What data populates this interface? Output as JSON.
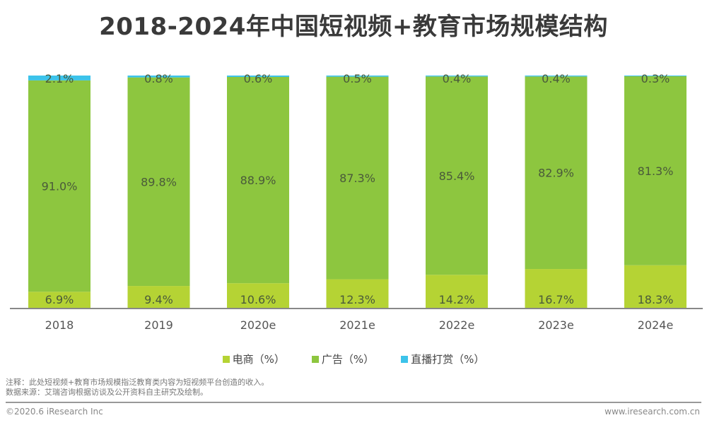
{
  "header": {
    "title": "2018-2024年中国短视频+教育市场规模结构"
  },
  "chart_data": {
    "type": "bar",
    "stacked": true,
    "normalized": true,
    "title": "2018-2024年中国短视频+教育市场规模结构",
    "xlabel": "",
    "ylabel": "",
    "ylim": [
      0,
      100
    ],
    "grid": false,
    "legend_position": "bottom",
    "categories": [
      "2018",
      "2019",
      "2020e",
      "2021e",
      "2022e",
      "2023e",
      "2024e"
    ],
    "series": [
      {
        "name": "电商（%）",
        "color": "#b5d334",
        "values": [
          6.9,
          9.4,
          10.6,
          12.3,
          14.2,
          16.7,
          18.3
        ]
      },
      {
        "name": "广告（%）",
        "color": "#8dc63f",
        "values": [
          91.0,
          89.8,
          88.9,
          87.3,
          85.4,
          82.9,
          81.3
        ]
      },
      {
        "name": "直播打赏（%）",
        "color": "#3cc3ea",
        "values": [
          2.1,
          0.8,
          0.6,
          0.5,
          0.4,
          0.4,
          0.3
        ]
      }
    ],
    "data_labels": true,
    "value_suffix": "%"
  },
  "footer": {
    "note": "注释：此处短视频+教育市场规模指泛教育类内容为短视频平台创造的收入。",
    "source": "数据来源：艾瑞咨询根据访谈及公开资料自主研究及绘制。",
    "copyright": "©2020.6 iResearch Inc",
    "website": "www.iresearch.com.cn"
  }
}
